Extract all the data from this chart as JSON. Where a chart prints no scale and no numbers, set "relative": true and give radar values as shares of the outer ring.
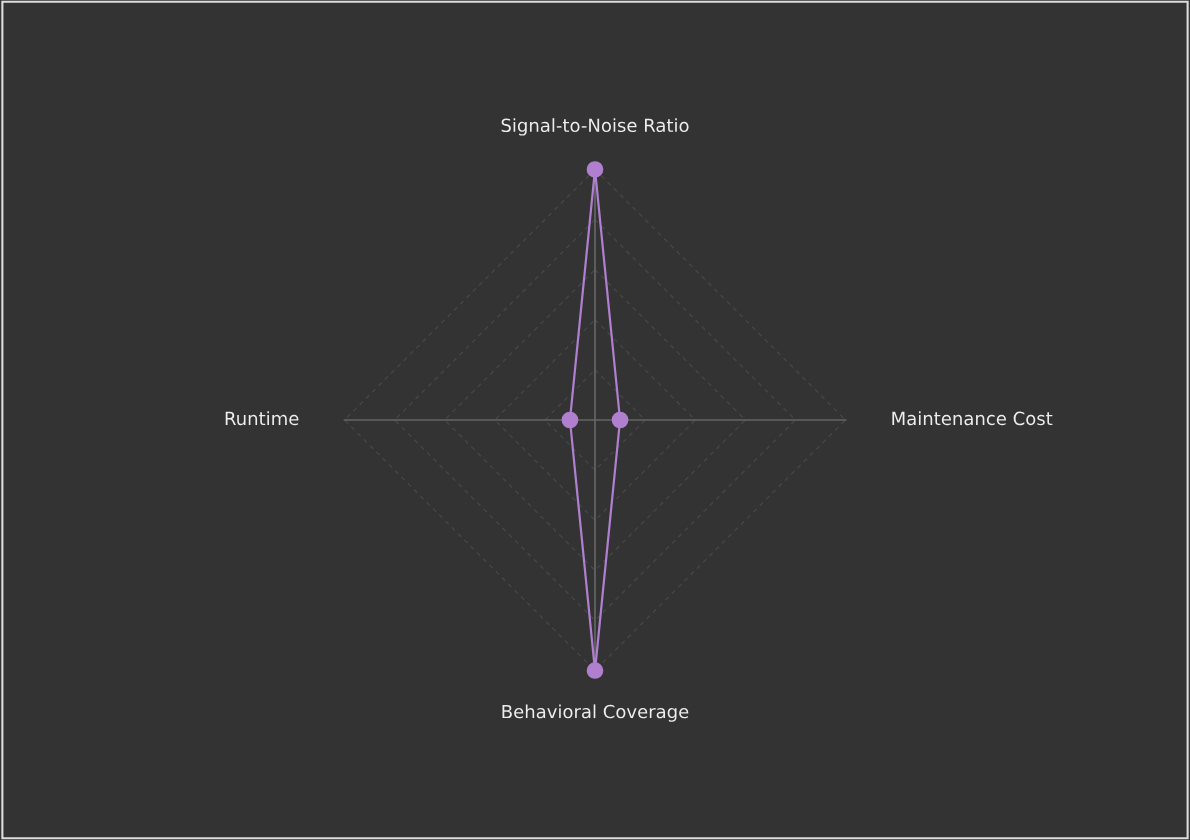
{
  "chart_data": {
    "type": "radar",
    "relative": true,
    "grid": true,
    "marker": "circle",
    "categories": [
      "Signal-to-Noise Ratio",
      "Maintenance Cost",
      "Behavioral Coverage",
      "Runtime"
    ],
    "series": [
      {
        "color": "#b07fcf",
        "values": [
          1,
          0.1,
          1,
          0.1
        ]
      }
    ]
  }
}
